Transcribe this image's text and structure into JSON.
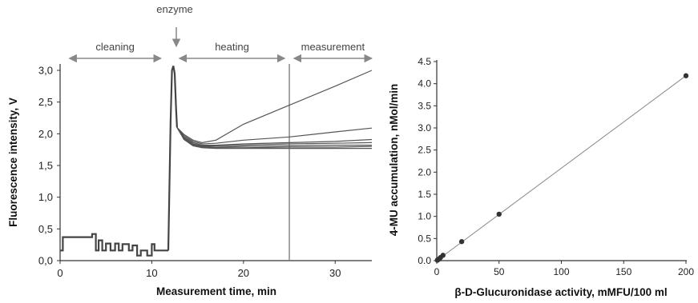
{
  "chart_data": [
    {
      "type": "line",
      "title": "",
      "xlabel": "Measurement time, min",
      "ylabel": "Fluorescence intensity, V",
      "xlim": [
        0,
        34
      ],
      "ylim": [
        0,
        3.1
      ],
      "xticks": [
        0,
        10,
        20,
        30
      ],
      "yticks": [
        0.0,
        0.5,
        1.0,
        1.5,
        2.0,
        2.5,
        3.0
      ],
      "ytick_labels": [
        "0,0",
        "0,5",
        "1,0",
        "1,5",
        "2,0",
        "2,5",
        "3,0"
      ],
      "vertical_line_x": 25,
      "grid": false,
      "phase_annotations": [
        {
          "label": "cleaning",
          "x_range": [
            1,
            11
          ]
        },
        {
          "label": "heating",
          "x_range": [
            13,
            24.5
          ]
        },
        {
          "label": "measurement",
          "x_range": [
            25.5,
            34
          ]
        }
      ],
      "event_annotation": {
        "label": "enzyme",
        "x": 12.4
      },
      "baseline": {
        "x": [
          0,
          0.3,
          0.3,
          0.5,
          0.5,
          3.5,
          3.5,
          3.9,
          3.9,
          4.2,
          4.2,
          4.6,
          4.6,
          5.0,
          5.0,
          5.5,
          5.5,
          6.0,
          6.0,
          6.4,
          6.4,
          6.8,
          6.8,
          7.5,
          7.5,
          7.9,
          7.9,
          8.4,
          8.4,
          8.8,
          8.8,
          9.5,
          9.5,
          10.0,
          10.0,
          10.3,
          10.3,
          11.8,
          11.8
        ],
        "y": [
          0.16,
          0.16,
          0.37,
          0.37,
          0.37,
          0.37,
          0.42,
          0.42,
          0.16,
          0.16,
          0.32,
          0.32,
          0.16,
          0.16,
          0.27,
          0.27,
          0.16,
          0.16,
          0.27,
          0.27,
          0.16,
          0.16,
          0.26,
          0.26,
          0.16,
          0.16,
          0.24,
          0.24,
          0.08,
          0.08,
          0.16,
          0.16,
          0.08,
          0.08,
          0.26,
          0.26,
          0.16,
          0.16,
          0.16
        ]
      },
      "spike": {
        "x": [
          11.8,
          12.05,
          12.2,
          12.35,
          12.5,
          12.65,
          12.75
        ],
        "y": [
          0.16,
          2.2,
          3.0,
          3.07,
          2.95,
          2.4,
          2.1
        ]
      },
      "series": [
        {
          "x": [
            12.75,
            13.5,
            14.5,
            15.5,
            17,
            20,
            25,
            30,
            34
          ],
          "y": [
            2.1,
            1.99,
            1.9,
            1.86,
            1.9,
            2.15,
            2.45,
            2.75,
            3.0
          ]
        },
        {
          "x": [
            12.75,
            13.5,
            14.5,
            15.5,
            17,
            20,
            25,
            30,
            34
          ],
          "y": [
            2.1,
            1.97,
            1.88,
            1.84,
            1.85,
            1.9,
            1.95,
            2.03,
            2.09
          ]
        },
        {
          "x": [
            12.75,
            13.5,
            14.5,
            15.5,
            17,
            20,
            25,
            30,
            34
          ],
          "y": [
            2.1,
            1.95,
            1.86,
            1.82,
            1.82,
            1.84,
            1.86,
            1.88,
            1.91
          ]
        },
        {
          "x": [
            12.75,
            13.5,
            14.5,
            15.5,
            17,
            20,
            25,
            30,
            34
          ],
          "y": [
            2.1,
            1.94,
            1.84,
            1.81,
            1.81,
            1.82,
            1.84,
            1.85,
            1.86
          ]
        },
        {
          "x": [
            12.75,
            13.5,
            14.5,
            15.5,
            17,
            20,
            25,
            30,
            34
          ],
          "y": [
            2.1,
            1.93,
            1.83,
            1.8,
            1.79,
            1.8,
            1.81,
            1.82,
            1.82
          ]
        },
        {
          "x": [
            12.75,
            13.5,
            14.5,
            15.5,
            17,
            20,
            25,
            30,
            34
          ],
          "y": [
            2.1,
            1.92,
            1.82,
            1.79,
            1.78,
            1.78,
            1.79,
            1.79,
            1.8
          ]
        },
        {
          "x": [
            12.75,
            13.5,
            14.5,
            15.5,
            17,
            20,
            25,
            30,
            34
          ],
          "y": [
            2.1,
            1.91,
            1.81,
            1.78,
            1.77,
            1.77,
            1.77,
            1.77,
            1.77
          ]
        }
      ]
    },
    {
      "type": "scatter",
      "title": "",
      "xlabel": "β-D-Glucuronidase activity, mMFU/100 ml",
      "ylabel": "4-MU accumulation, nMol/min",
      "xlim": [
        0,
        200
      ],
      "ylim": [
        0,
        4.5
      ],
      "xticks": [
        0,
        50,
        100,
        150,
        200
      ],
      "yticks": [
        0.0,
        0.5,
        1.0,
        1.5,
        2.0,
        2.5,
        3.0,
        3.5,
        4.0,
        4.5
      ],
      "ytick_labels": [
        "0.0",
        "0.5",
        "1.0",
        "1.5",
        "2.0",
        "2.5",
        "3.0",
        "3.5",
        "4.0",
        "4.5"
      ],
      "grid": false,
      "points": {
        "x": [
          0.5,
          1,
          2,
          3,
          5,
          20,
          50,
          200
        ],
        "y": [
          0.01,
          0.02,
          0.04,
          0.07,
          0.12,
          0.43,
          1.05,
          4.18
        ]
      },
      "trendline": {
        "x": [
          0,
          200
        ],
        "y": [
          0,
          4.18
        ]
      }
    }
  ]
}
